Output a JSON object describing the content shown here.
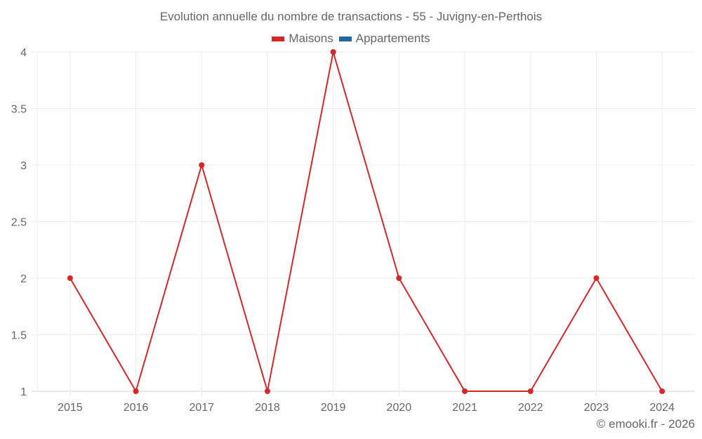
{
  "header": {
    "title": "Evolution annuelle du nombre de transactions - 55 - Juvigny-en-Perthois"
  },
  "legend": [
    {
      "label": "Maisons",
      "color": "#d62728"
    },
    {
      "label": "Appartements",
      "color": "#1f6aa5"
    }
  ],
  "footer": {
    "credit": "© emooki.fr - 2026"
  },
  "chart_data": {
    "type": "line",
    "title": "Evolution annuelle du nombre de transactions - 55 - Juvigny-en-Perthois",
    "xlabel": "",
    "ylabel": "",
    "categories": [
      "2015",
      "2016",
      "2017",
      "2018",
      "2019",
      "2020",
      "2021",
      "2022",
      "2023",
      "2024"
    ],
    "series": [
      {
        "name": "Maisons",
        "color": "#d62728",
        "values": [
          2,
          1,
          3,
          1,
          4,
          2,
          1,
          1,
          2,
          1
        ]
      },
      {
        "name": "Appartements",
        "color": "#1f6aa5",
        "values": []
      }
    ],
    "ylim": [
      1,
      4
    ],
    "yticks": [
      "1",
      "1.5",
      "2",
      "2.5",
      "3",
      "3.5",
      "4"
    ],
    "grid": true,
    "legend_position": "top"
  }
}
